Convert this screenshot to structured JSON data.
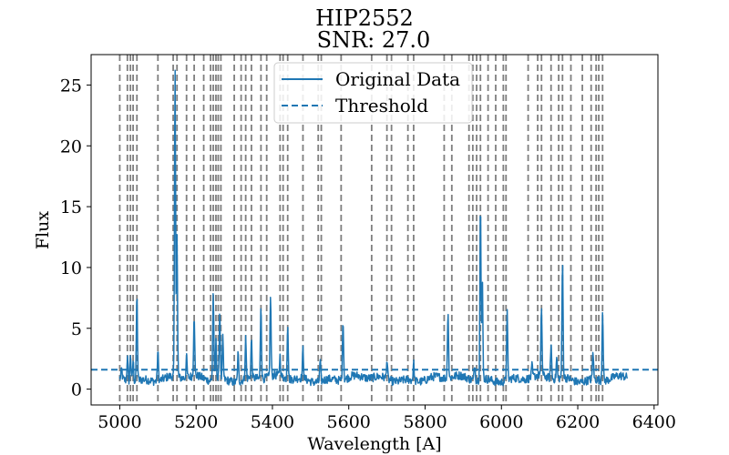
{
  "chart_data": {
    "type": "line",
    "title": "HIP2552",
    "subtitle": "SNR: 27.0",
    "xlabel": "Wavelength [A]",
    "ylabel": "Flux",
    "xlim": [
      4925,
      6410
    ],
    "ylim": [
      -1.3,
      27.5
    ],
    "xticks": [
      5000,
      5200,
      5400,
      5600,
      5800,
      6000,
      6200,
      6400
    ],
    "yticks": [
      0,
      5,
      10,
      15,
      20,
      25
    ],
    "colors": {
      "data": "#1f77b4",
      "threshold": "#1f77b4",
      "lines": "#7f7f7f"
    },
    "legend": {
      "position": "top-center",
      "entries": [
        "Original Data",
        "Threshold"
      ]
    },
    "series": [
      {
        "name": "Original Data",
        "x_range": [
          5000,
          6330
        ],
        "baseline": 0.85,
        "noise": 0.35,
        "peaks": [
          [
            5005,
            1.6
          ],
          [
            5020,
            2.8
          ],
          [
            5028,
            3.2
          ],
          [
            5035,
            2.6
          ],
          [
            5045,
            8.0
          ],
          [
            5100,
            3.3
          ],
          [
            5145,
            26.0
          ],
          [
            5150,
            12.5
          ],
          [
            5175,
            2.5
          ],
          [
            5195,
            6.0
          ],
          [
            5245,
            8.0
          ],
          [
            5252,
            4.0
          ],
          [
            5262,
            6.5
          ],
          [
            5270,
            4.2
          ],
          [
            5310,
            3.2
          ],
          [
            5330,
            4.2
          ],
          [
            5345,
            4.0
          ],
          [
            5370,
            7.0
          ],
          [
            5395,
            7.5
          ],
          [
            5420,
            2.5
          ],
          [
            5440,
            5.5
          ],
          [
            5480,
            3.3
          ],
          [
            5525,
            2.5
          ],
          [
            5585,
            6.0
          ],
          [
            5700,
            2.4
          ],
          [
            5770,
            2.3
          ],
          [
            5860,
            6.5
          ],
          [
            5930,
            2.2
          ],
          [
            5945,
            15.5
          ],
          [
            5950,
            9.0
          ],
          [
            6015,
            6.5
          ],
          [
            6080,
            1.8
          ],
          [
            6105,
            6.5
          ],
          [
            6130,
            3.7
          ],
          [
            6145,
            2.6
          ],
          [
            6160,
            10.5
          ],
          [
            6240,
            3.2
          ],
          [
            6265,
            6.8
          ]
        ]
      },
      {
        "name": "Threshold",
        "y": 1.6
      }
    ],
    "vertical_lines_x": [
      5000,
      5020,
      5028,
      5035,
      5045,
      5100,
      5140,
      5150,
      5175,
      5195,
      5220,
      5238,
      5245,
      5252,
      5258,
      5265,
      5300,
      5318,
      5330,
      5345,
      5370,
      5385,
      5420,
      5428,
      5440,
      5480,
      5520,
      5528,
      5580,
      5660,
      5700,
      5712,
      5755,
      5770,
      5850,
      5870,
      5915,
      5925,
      5935,
      5945,
      5965,
      5985,
      6005,
      6012,
      6070,
      6095,
      6105,
      6130,
      6150,
      6160,
      6182,
      6212,
      6235,
      6248,
      6255,
      6265
    ]
  }
}
